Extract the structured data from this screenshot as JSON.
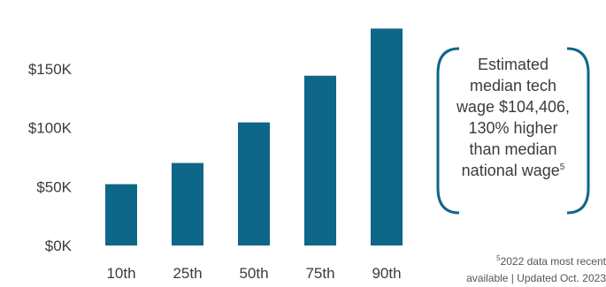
{
  "chart_data": {
    "type": "bar",
    "categories": [
      "10th",
      "25th",
      "50th",
      "75th",
      "90th"
    ],
    "values": [
      52000,
      70000,
      104406,
      144000,
      184000
    ],
    "ylim": [
      0,
      200000
    ],
    "y_ticks": [
      {
        "value": 0,
        "label": "$0K"
      },
      {
        "value": 50000,
        "label": "$50K"
      },
      {
        "value": 100000,
        "label": "$100K"
      },
      {
        "value": 150000,
        "label": "$150K"
      }
    ],
    "bar_color": "#0e6688",
    "grid": false
  },
  "callout": {
    "lines": [
      "Estimated",
      "median tech",
      "wage $104,406,",
      "130% higher",
      "than median",
      "national wage"
    ],
    "superscript": "5",
    "bracket_color": "#0e6688"
  },
  "footnote": {
    "superscript": "5",
    "line1": "2022 data most recent",
    "line2": "available | Updated Oct. 2023"
  }
}
